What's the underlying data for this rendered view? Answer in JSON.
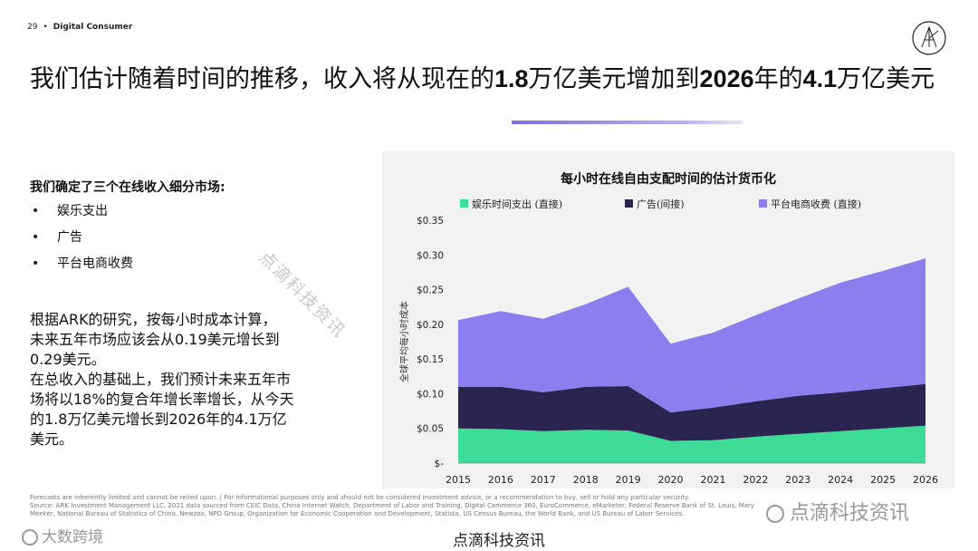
{
  "header": {
    "page_number": "29",
    "separator": "•",
    "section": "Digital Consumer"
  },
  "title": {
    "p1": "我们估计随着时间的推移，收入将从现在的",
    "v1": "1.8",
    "p2": "万亿美元增加到",
    "v2": "2026",
    "p3": "年的",
    "v3": "4.1",
    "p4": "万亿美元"
  },
  "left": {
    "heading": "我们确定了三个在线收入细分市场:",
    "bullets": [
      "娱乐支出",
      "广告",
      "平台电商收费"
    ],
    "paragraph": [
      "根据ARK的研究，按每小时成本计算，",
      "未来五年市场应该会从0.19美元增长到",
      "0.29美元。",
      "在总收入的基础上，我们预计未来五年市",
      "场将以18%的复合年增长率增长，从今天",
      "的1.8万亿美元增长到2026年的4.1万亿",
      "美元。"
    ]
  },
  "chart_data": {
    "type": "area",
    "stacked": true,
    "title": "每小时在线自由支配时间的估计货币化",
    "ylabel": "全球平均每小时成本",
    "x": [
      "2015",
      "2016",
      "2017",
      "2018",
      "2019",
      "2020",
      "2021",
      "2022",
      "2023",
      "2024",
      "2025",
      "2026"
    ],
    "yticks": [
      "$-",
      "$0.05",
      "$0.10",
      "$0.15",
      "$0.20",
      "$0.25",
      "$0.30",
      "$0.35"
    ],
    "ylim": [
      0,
      0.35
    ],
    "legend_position": "top",
    "series": [
      {
        "name": "娱乐时间支出 (直接)",
        "color": "#3ddc97",
        "values": [
          0.05,
          0.049,
          0.046,
          0.048,
          0.047,
          0.032,
          0.033,
          0.038,
          0.042,
          0.046,
          0.05,
          0.054
        ]
      },
      {
        "name": "广告(间接)",
        "color": "#2a2550",
        "values": [
          0.06,
          0.061,
          0.056,
          0.062,
          0.064,
          0.041,
          0.047,
          0.051,
          0.055,
          0.056,
          0.058,
          0.06
        ]
      },
      {
        "name": "平台电商收费 (直接)",
        "color": "#8b7ff0",
        "values": [
          0.096,
          0.109,
          0.106,
          0.119,
          0.143,
          0.099,
          0.108,
          0.124,
          0.14,
          0.158,
          0.169,
          0.181
        ]
      }
    ]
  },
  "watermarks": {
    "diagonal": "点滴科技资讯",
    "right": "点滴科技资讯",
    "left": "大数跨境"
  },
  "footnote": [
    "Forecasts are inherently limited and cannot be relied upon. | For informational purposes only and should not be considered investment advice, or a recommendation to buy, sell or hold any particular security.",
    "Source: ARK Investment Management LLC, 2021 data sourced from CEIC Data, China Internet Watch, Department of Labor and Training, Digital Commerce 360, EuroCommerce, eMarketer, Federal Reserve Bank of St. Louis, Mary",
    "Meeker, National Bureau of Statistics of China, Newzoo, NPD Group, Organization for Economic Cooperation and Development, Statista, US Census Bureau, the World Bank, and US Bureau of Labor Services."
  ],
  "source_caption": "点滴科技资讯"
}
